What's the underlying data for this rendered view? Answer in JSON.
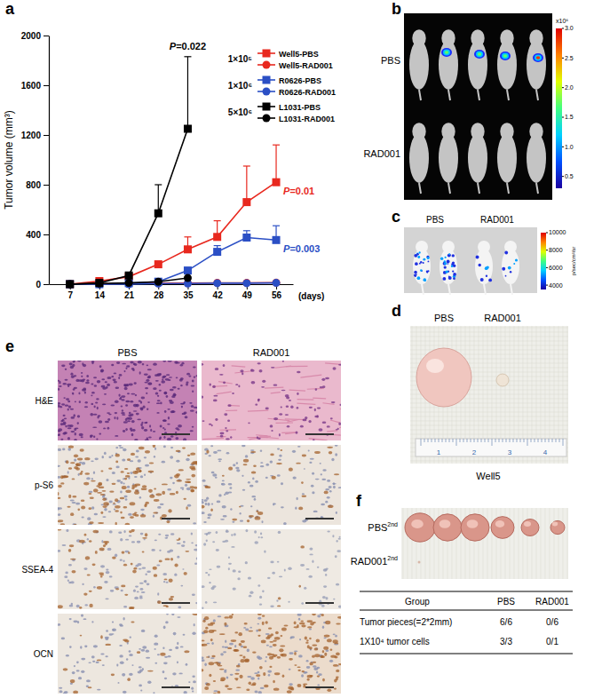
{
  "chart_data": {
    "type": "line",
    "panel_label": "a",
    "x": [
      7,
      14,
      21,
      28,
      35,
      42,
      49,
      56
    ],
    "xlim": [
      2,
      60
    ],
    "xticks": [
      7,
      14,
      21,
      28,
      35,
      42,
      49,
      56
    ],
    "xlabel": "(days)",
    "ylabel": "Tumor volume (mm³)",
    "ylim": [
      0,
      2000
    ],
    "yticks": [
      0,
      400,
      800,
      1200,
      1600,
      2000
    ],
    "grid": false,
    "legend": "top-right",
    "series": [
      {
        "name": "Well5-PBS",
        "color": "#e8281e",
        "marker": "square",
        "line_style": "solid",
        "cell_number": "1×10⁵",
        "p_value": "P=0.01",
        "values": [
          0,
          25,
          60,
          160,
          280,
          380,
          660,
          820
        ],
        "errors": [
          null,
          null,
          null,
          null,
          100,
          130,
          290,
          300
        ]
      },
      {
        "name": "Well5-RAD001",
        "color": "#e8281e",
        "marker": "circle",
        "line_style": "solid",
        "values": [
          0,
          3,
          5,
          8,
          8,
          10,
          10,
          12
        ]
      },
      {
        "name": "R0626-PBS",
        "color": "#2b4fc5",
        "marker": "square",
        "line_style": "solid",
        "cell_number": "1×10⁶",
        "p_value": "P=0.003",
        "values": [
          0,
          0,
          8,
          20,
          110,
          260,
          375,
          355
        ],
        "errors": [
          null,
          null,
          null,
          null,
          null,
          50,
          55,
          115
        ]
      },
      {
        "name": "R0626-RAD001",
        "color": "#2b4fc5",
        "marker": "circle",
        "line_style": "solid",
        "values": [
          0,
          0,
          0,
          5,
          5,
          8,
          8,
          10
        ]
      },
      {
        "name": "L1031-PBS",
        "color": "#000000",
        "marker": "square",
        "line_style": "solid",
        "cell_number": "5×10⁶",
        "p_value": "P=0.022",
        "values": [
          0,
          10,
          70,
          570,
          1250,
          null,
          null,
          null
        ],
        "errors": [
          null,
          null,
          null,
          230,
          580,
          null,
          null,
          null
        ]
      },
      {
        "name": "L1031-RAD001",
        "color": "#000000",
        "marker": "circle",
        "line_style": "solid",
        "values": [
          0,
          5,
          10,
          20,
          50,
          null,
          null,
          null
        ]
      }
    ]
  },
  "panels": {
    "b": {
      "label": "b",
      "row_labels": [
        "PBS",
        "RAD001"
      ],
      "colorbar": {
        "range": [
          0.3,
          3.0
        ],
        "ticks": [
          {
            "value": 3,
            "label": "3.0"
          },
          2.5,
          {
            "value": 2,
            "label": "2.0"
          },
          1.5,
          {
            "value": 1,
            "label": "1.0"
          },
          0.5
        ],
        "unit": "x10⁶"
      }
    },
    "c": {
      "label": "c",
      "column_labels": [
        "PBS",
        "RAD001"
      ],
      "colorbar": {
        "range": [
          3500,
          10000
        ],
        "ticks": [
          10000,
          8000,
          6000,
          4000
        ],
        "unit": "p/sec/cm²/sr"
      }
    },
    "d": {
      "label": "d",
      "column_labels": [
        "PBS",
        "RAD001"
      ],
      "sample": "Well5",
      "ruler_labels": [
        "1",
        "2",
        "3",
        "4"
      ]
    },
    "e": {
      "label": "e",
      "column_labels": [
        "PBS",
        "RAD001"
      ],
      "row_labels": [
        "H&E",
        "p-S6",
        "SSEA-4",
        "OCN"
      ]
    },
    "f": {
      "label": "f",
      "row_labels": [
        {
          "text": "PBS",
          "sup": "2nd"
        },
        {
          "text": "RAD001",
          "sup": "2nd"
        }
      ],
      "table": {
        "header": [
          "Group",
          "PBS",
          "RAD001"
        ],
        "rows": [
          [
            "Tumor pieces(=2*2mm)",
            "6/6",
            "0/6"
          ],
          [
            "1X10⁴ tumor cells",
            "3/3",
            "0/1"
          ]
        ]
      }
    }
  }
}
